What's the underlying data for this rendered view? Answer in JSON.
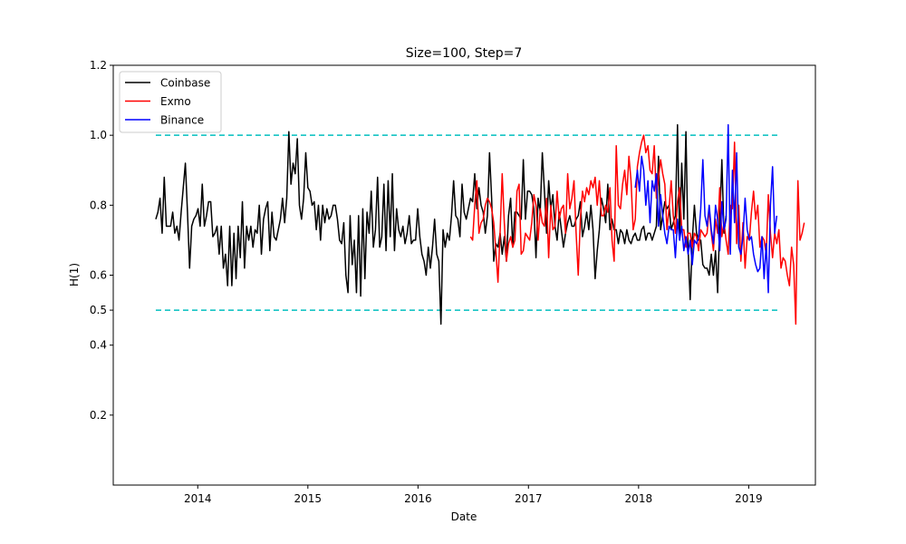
{
  "chart_data": {
    "type": "line",
    "title": "Size=100, Step=7",
    "xlabel": "Date",
    "ylabel": "H(1)",
    "xlim": [
      "2013-03-27",
      "2019-08-10"
    ],
    "ylim": [
      0.0,
      1.2
    ],
    "x_ticks": [
      "2014",
      "2015",
      "2016",
      "2017",
      "2018",
      "2019"
    ],
    "y_ticks": [
      "0.2",
      "0.4",
      "0.5",
      "0.6",
      "0.8",
      "1.0",
      "1.2"
    ],
    "grid": false,
    "legend_position": "top-left",
    "colors": {
      "Coinbase": "#000000",
      "Exmo": "#ff0000",
      "Binance": "#0000ff",
      "reference": "#00bfbf"
    },
    "reference_lines": [
      {
        "y": 1.0,
        "style": "dashed",
        "x_start": "2013-08-15",
        "x_end": "2019-04-17"
      },
      {
        "y": 0.5,
        "style": "dashed",
        "x_start": "2013-08-15",
        "x_end": "2019-04-17"
      }
    ],
    "series": [
      {
        "name": "Coinbase",
        "start": "2013-08-15",
        "step_days": 7,
        "values": [
          0.76,
          0.78,
          0.82,
          0.72,
          0.88,
          0.74,
          0.74,
          0.74,
          0.78,
          0.72,
          0.74,
          0.7,
          0.78,
          0.85,
          0.92,
          0.78,
          0.62,
          0.74,
          0.76,
          0.77,
          0.79,
          0.74,
          0.86,
          0.74,
          0.77,
          0.81,
          0.81,
          0.71,
          0.72,
          0.74,
          0.66,
          0.74,
          0.62,
          0.66,
          0.57,
          0.74,
          0.57,
          0.72,
          0.59,
          0.74,
          0.65,
          0.81,
          0.62,
          0.74,
          0.7,
          0.74,
          0.68,
          0.73,
          0.72,
          0.8,
          0.66,
          0.76,
          0.79,
          0.81,
          0.67,
          0.78,
          0.71,
          0.7,
          0.73,
          0.76,
          0.82,
          0.75,
          0.82,
          1.01,
          0.86,
          0.92,
          0.89,
          0.99,
          0.8,
          0.76,
          0.82,
          0.95,
          0.85,
          0.84,
          0.8,
          0.81,
          0.73,
          0.8,
          0.7,
          0.8,
          0.75,
          0.79,
          0.76,
          0.77,
          0.8,
          0.8,
          0.76,
          0.7,
          0.69,
          0.75,
          0.6,
          0.55,
          0.77,
          0.63,
          0.7,
          0.55,
          0.77,
          0.54,
          0.79,
          0.59,
          0.78,
          0.72,
          0.84,
          0.68,
          0.73,
          0.88,
          0.68,
          0.71,
          0.86,
          0.67,
          0.87,
          0.71,
          0.89,
          0.67,
          0.79,
          0.73,
          0.71,
          0.74,
          0.69,
          0.72,
          0.77,
          0.69,
          0.7,
          0.7,
          0.79,
          0.71,
          0.66,
          0.64,
          0.6,
          0.68,
          0.62,
          0.68,
          0.76,
          0.66,
          0.64,
          0.46,
          0.73,
          0.68,
          0.72,
          0.7,
          0.77,
          0.87,
          0.77,
          0.76,
          0.71,
          0.86,
          0.78,
          0.76,
          0.79,
          0.82,
          0.81,
          0.89,
          0.79,
          0.85,
          0.8,
          0.78,
          0.72,
          0.77,
          0.95,
          0.82,
          0.64,
          0.69,
          0.68,
          0.72,
          0.66,
          0.71,
          0.64,
          0.77,
          0.82,
          0.68,
          0.78,
          0.78,
          0.77,
          0.76,
          0.93,
          0.76,
          0.84,
          0.84,
          0.83,
          0.79,
          0.65,
          0.82,
          0.78,
          0.95,
          0.84,
          0.72,
          0.87,
          0.79,
          0.83,
          0.74,
          0.7,
          0.78,
          0.73,
          0.68,
          0.72,
          0.75,
          0.77,
          0.74,
          0.74,
          0.76,
          0.77,
          0.81,
          0.71,
          0.74,
          0.78,
          0.73,
          0.8,
          0.73,
          0.59,
          0.67,
          0.73,
          0.82,
          0.79,
          0.75,
          0.86,
          0.73,
          0.76,
          0.73,
          0.73,
          0.69,
          0.73,
          0.72,
          0.69,
          0.73,
          0.7,
          0.69,
          0.71,
          0.72,
          0.7,
          0.7,
          0.73,
          0.74,
          0.7,
          0.72,
          0.72,
          0.7,
          0.72,
          0.74,
          0.94,
          0.73,
          0.77,
          0.81,
          0.79,
          0.8,
          0.73,
          0.75,
          0.77,
          1.03,
          0.7,
          0.92,
          0.76,
          1.01,
          0.68,
          0.53,
          0.7,
          0.8,
          0.72,
          0.7,
          0.7,
          0.63,
          0.62,
          0.62,
          0.6,
          0.66,
          0.6,
          0.67,
          0.55,
          0.75,
          0.93,
          0.72,
          0.77
        ]
      },
      {
        "name": "Exmo",
        "start": "2016-06-23",
        "step_days": 7,
        "values": [
          0.71,
          0.7,
          0.8,
          0.87,
          0.72,
          0.75,
          0.76,
          0.8,
          0.82,
          0.81,
          0.79,
          0.75,
          0.67,
          0.58,
          0.72,
          0.89,
          0.75,
          0.64,
          0.69,
          0.71,
          0.68,
          0.7,
          0.84,
          0.86,
          0.66,
          0.67,
          0.72,
          0.71,
          0.7,
          0.75,
          0.83,
          0.8,
          0.7,
          0.79,
          0.75,
          0.74,
          0.82,
          0.65,
          0.8,
          0.73,
          0.74,
          0.84,
          0.76,
          0.79,
          0.8,
          0.72,
          0.89,
          0.79,
          0.82,
          0.87,
          0.72,
          0.6,
          0.76,
          0.84,
          0.81,
          0.85,
          0.83,
          0.87,
          0.85,
          0.88,
          0.8,
          0.87,
          0.77,
          0.77,
          0.8,
          0.78,
          0.85,
          0.7,
          0.64,
          0.97,
          0.8,
          0.79,
          0.86,
          0.9,
          0.83,
          0.94,
          0.87,
          0.73,
          0.76,
          0.91,
          0.95,
          0.98,
          1.0,
          0.95,
          0.97,
          0.9,
          0.89,
          0.97,
          0.82,
          0.88,
          0.93,
          0.89,
          0.86,
          0.73,
          0.79,
          0.87,
          0.77,
          0.72,
          0.81,
          0.85,
          0.73,
          0.73,
          0.68,
          0.72,
          0.72,
          0.68,
          0.72,
          0.71,
          0.67,
          0.73,
          0.72,
          0.71,
          0.72,
          0.79,
          0.72,
          0.67,
          0.76,
          0.72,
          0.85,
          0.71,
          0.75,
          0.7,
          0.66,
          0.8,
          0.79,
          0.98,
          0.69,
          0.8,
          0.64,
          0.75,
          0.62,
          0.71,
          0.7,
          0.78,
          0.84,
          0.76,
          0.8,
          0.68,
          0.71,
          0.7,
          0.66,
          0.83,
          0.72,
          0.65,
          0.72,
          0.69,
          0.73,
          0.62,
          0.65,
          0.64,
          0.6,
          0.57,
          0.68,
          0.63,
          0.46,
          0.87,
          0.7,
          0.72,
          0.75
        ]
      },
      {
        "name": "Binance",
        "start": "2017-12-21",
        "step_days": 7,
        "values": [
          0.85,
          0.9,
          0.84,
          0.94,
          0.9,
          0.8,
          0.87,
          0.75,
          0.87,
          0.84,
          0.89,
          0.74,
          0.83,
          0.77,
          0.72,
          0.69,
          0.74,
          0.73,
          0.73,
          0.65,
          0.76,
          0.7,
          0.74,
          0.67,
          0.71,
          0.66,
          0.7,
          0.63,
          0.7,
          0.69,
          0.71,
          0.79,
          0.93,
          0.77,
          0.74,
          0.8,
          0.73,
          0.69,
          0.8,
          0.76,
          0.67,
          0.81,
          0.73,
          0.76,
          1.03,
          0.66,
          0.9,
          0.75,
          0.95,
          0.68,
          0.66,
          0.71,
          0.82,
          0.73,
          0.7,
          0.71,
          0.66,
          0.63,
          0.61,
          0.62,
          0.71,
          0.59,
          0.69,
          0.55,
          0.8,
          0.91,
          0.72,
          0.77
        ]
      }
    ]
  }
}
